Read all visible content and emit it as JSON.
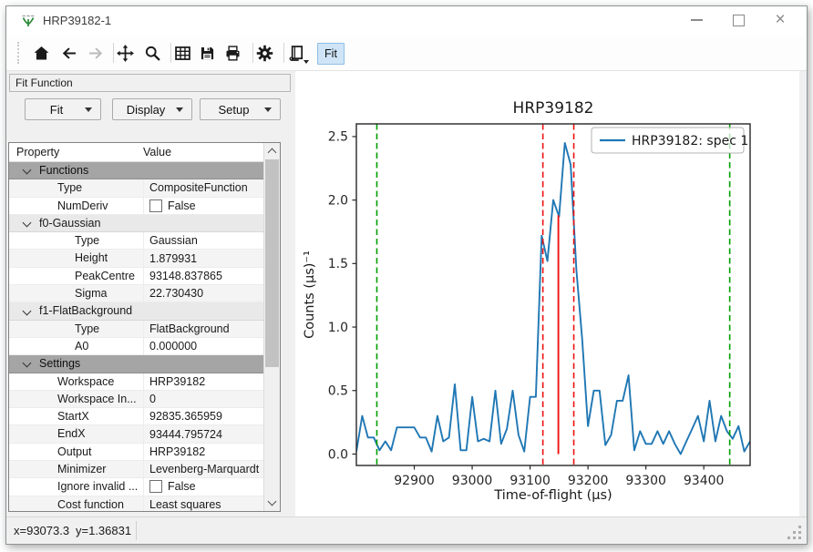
{
  "window": {
    "title": "HRP39182-1",
    "controls": [
      "minimize",
      "maximize",
      "close"
    ]
  },
  "toolbar": {
    "items": [
      {
        "type": "button",
        "icon": "home"
      },
      {
        "type": "button",
        "icon": "back"
      },
      {
        "type": "button",
        "icon": "forward",
        "disabled": true
      },
      {
        "type": "separator"
      },
      {
        "type": "button",
        "icon": "pan"
      },
      {
        "type": "button",
        "icon": "zoom"
      },
      {
        "type": "separator"
      },
      {
        "type": "button",
        "icon": "grid"
      },
      {
        "type": "button",
        "icon": "save"
      },
      {
        "type": "button",
        "icon": "print"
      },
      {
        "type": "separator"
      },
      {
        "type": "button",
        "icon": "settings"
      },
      {
        "type": "separator"
      },
      {
        "type": "button",
        "icon": "script",
        "dropdown": true
      }
    ],
    "fit_toggle": {
      "label": "Fit",
      "active": true
    }
  },
  "dock": {
    "title": "Fit Function",
    "buttons": [
      {
        "label": "Fit"
      },
      {
        "label": "Display"
      },
      {
        "label": "Setup"
      }
    ],
    "grid": {
      "columns": [
        "Property",
        "Value"
      ],
      "rows": [
        {
          "kind": "section",
          "label": "Functions"
        },
        {
          "kind": "item",
          "level": 1,
          "label": "Type",
          "value": "CompositeFunction"
        },
        {
          "kind": "checkbox",
          "level": 1,
          "label": "NumDeriv",
          "value": "False",
          "checked": false
        },
        {
          "kind": "group",
          "label": "f0-Gaussian"
        },
        {
          "kind": "item",
          "level": 2,
          "label": "Type",
          "value": "Gaussian"
        },
        {
          "kind": "item",
          "level": 2,
          "label": "Height",
          "value": "1.879931"
        },
        {
          "kind": "item",
          "level": 2,
          "label": "PeakCentre",
          "value": "93148.837865"
        },
        {
          "kind": "item",
          "level": 2,
          "label": "Sigma",
          "value": "22.730430"
        },
        {
          "kind": "group",
          "label": "f1-FlatBackground"
        },
        {
          "kind": "item",
          "level": 2,
          "label": "Type",
          "value": "FlatBackground"
        },
        {
          "kind": "item",
          "level": 2,
          "label": "A0",
          "value": "0.000000"
        },
        {
          "kind": "section",
          "label": "Settings"
        },
        {
          "kind": "item",
          "level": 1,
          "label": "Workspace",
          "value": "HRP39182"
        },
        {
          "kind": "item",
          "level": 1,
          "label": "Workspace In...",
          "value": "0"
        },
        {
          "kind": "item",
          "level": 1,
          "label": "StartX",
          "value": "92835.365959"
        },
        {
          "kind": "item",
          "level": 1,
          "label": "EndX",
          "value": "93444.795724"
        },
        {
          "kind": "item",
          "level": 1,
          "label": "Output",
          "value": "HRP39182"
        },
        {
          "kind": "item",
          "level": 1,
          "label": "Minimizer",
          "value": "Levenberg-Marquardt"
        },
        {
          "kind": "checkbox",
          "level": 1,
          "label": "Ignore invalid ...",
          "value": "False",
          "checked": false
        },
        {
          "kind": "item",
          "level": 1,
          "label": "Cost function",
          "value": "Least squares"
        }
      ]
    }
  },
  "statusbar": {
    "x": "x=93073.3",
    "y": "y=1.36831"
  },
  "chart_data": {
    "type": "line",
    "title": "HRP39182",
    "xlabel": "Time-of-flight (μs)",
    "ylabel": "Counts (μs)⁻¹",
    "legend_entries": [
      "HRP39182: spec 1"
    ],
    "legend_position": "upper right",
    "grid": false,
    "xlim": [
      92800,
      93480
    ],
    "ylim": [
      -0.09,
      2.6
    ],
    "xticks": [
      92900,
      93000,
      93100,
      93200,
      93300,
      93400
    ],
    "yticks": [
      0.0,
      0.5,
      1.0,
      1.5,
      2.0,
      2.5
    ],
    "series": [
      {
        "name": "HRP39182: spec 1",
        "color": "#1f77b4",
        "x": [
          92800,
          92810,
          92820,
          92830,
          92840,
          92850,
          92860,
          92870,
          92880,
          92890,
          92900,
          92910,
          92920,
          92930,
          92940,
          92950,
          92960,
          92970,
          92980,
          92990,
          93000,
          93010,
          93020,
          93030,
          93040,
          93050,
          93060,
          93070,
          93080,
          93090,
          93100,
          93110,
          93120,
          93130,
          93140,
          93150,
          93160,
          93170,
          93180,
          93190,
          93200,
          93210,
          93220,
          93230,
          93240,
          93250,
          93260,
          93270,
          93280,
          93290,
          93300,
          93310,
          93320,
          93330,
          93340,
          93350,
          93360,
          93370,
          93380,
          93390,
          93400,
          93410,
          93420,
          93430,
          93440,
          93450,
          93460,
          93470,
          93480
        ],
        "y": [
          0.02,
          0.3,
          0.13,
          0.13,
          0.03,
          0.1,
          0.03,
          0.21,
          0.21,
          0.21,
          0.21,
          0.13,
          0.13,
          0.02,
          0.3,
          0.1,
          0.13,
          0.55,
          0.03,
          0.03,
          0.45,
          0.1,
          0.12,
          0.1,
          0.5,
          0.08,
          0.2,
          0.5,
          0.15,
          0.02,
          0.45,
          0.45,
          1.72,
          1.52,
          2.0,
          1.87,
          2.45,
          2.28,
          1.45,
          0.9,
          0.22,
          0.5,
          0.5,
          0.07,
          0.15,
          0.42,
          0.42,
          0.62,
          0.03,
          0.18,
          0.08,
          0.08,
          0.18,
          0.08,
          0.18,
          0.08,
          0.0,
          0.1,
          0.2,
          0.3,
          0.1,
          0.42,
          0.1,
          0.3,
          0.18,
          0.12,
          0.22,
          0.02,
          0.1
        ]
      }
    ],
    "vlines": [
      {
        "name": "fit-range-start",
        "x": 92835.365959,
        "style": "dashed",
        "color": "#00a000"
      },
      {
        "name": "fit-range-end",
        "x": 93444.795724,
        "style": "dashed",
        "color": "#00a000"
      },
      {
        "name": "peak-width-left",
        "x": 93122.1,
        "style": "dashed",
        "color": "#ee1111"
      },
      {
        "name": "peak-width-right",
        "x": 93175.5,
        "style": "dashed",
        "color": "#ee1111"
      },
      {
        "name": "peak-centre",
        "x": 93148.837865,
        "style": "solid",
        "color": "#ee1111",
        "ymin": 0,
        "ymax": 1.879931
      }
    ]
  }
}
